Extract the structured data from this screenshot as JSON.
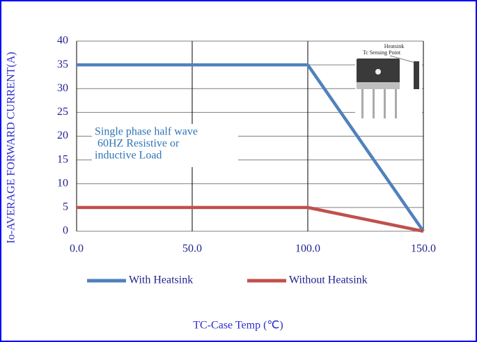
{
  "chart_data": {
    "type": "line",
    "x_label": "TC-Case Temp (℃)",
    "y_label": "Io-AVERAGE FORWARD CURRENT(A)",
    "annotation": [
      "Single phase half wave",
      " 60HZ Resistive or",
      "inductive Load"
    ],
    "inset_labels": [
      "Heatsink",
      "Tc Sensing Point"
    ],
    "x": [
      0,
      100,
      150
    ],
    "series": [
      {
        "name": "With Heatsink",
        "color": "#4f81bd",
        "values": [
          35,
          35,
          0
        ]
      },
      {
        "name": "Without Heatsink",
        "color": "#c0504d",
        "values": [
          5,
          5,
          0
        ]
      }
    ],
    "xlim": [
      0,
      150
    ],
    "xticks": [
      {
        "value": 0,
        "label": "0.0"
      },
      {
        "value": 50,
        "label": "50.0"
      },
      {
        "value": 100,
        "label": "100.0"
      },
      {
        "value": 150,
        "label": "150.0"
      }
    ],
    "ylim": [
      0,
      40
    ],
    "yticks": [
      0,
      5,
      10,
      15,
      20,
      25,
      30,
      35,
      40
    ],
    "grid": true,
    "legend": "bottom"
  }
}
